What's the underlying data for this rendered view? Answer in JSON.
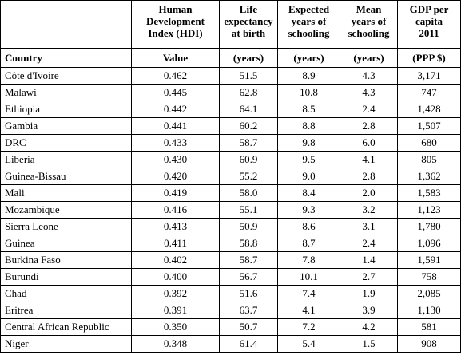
{
  "table": {
    "header_top": [
      [
        "Human",
        "Development",
        "Index (HDI)"
      ],
      [
        "Life",
        "expectancy",
        "at birth"
      ],
      [
        "Expected",
        "years of",
        "schooling"
      ],
      [
        "Mean",
        "years of",
        "schooling"
      ],
      [
        "GDP per",
        "capita",
        "2011"
      ]
    ],
    "header_sub": [
      "Country",
      "Value",
      "(years)",
      "(years)",
      "(years)",
      "(PPP $)"
    ],
    "rows": [
      [
        "Côte d'Ivoire",
        "0.462",
        "51.5",
        "8.9",
        "4.3",
        "3,171"
      ],
      [
        "Malawi",
        "0.445",
        "62.8",
        "10.8",
        "4.3",
        "747"
      ],
      [
        "Ethiopia",
        "0.442",
        "64.1",
        "8.5",
        "2.4",
        "1,428"
      ],
      [
        "Gambia",
        "0.441",
        "60.2",
        "8.8",
        "2.8",
        "1,507"
      ],
      [
        "DRC",
        "0.433",
        "58.7",
        "9.8",
        "6.0",
        "680"
      ],
      [
        "Liberia",
        "0.430",
        "60.9",
        "9.5",
        "4.1",
        "805"
      ],
      [
        "Guinea-Bissau",
        "0.420",
        "55.2",
        "9.0",
        "2.8",
        "1,362"
      ],
      [
        "Mali",
        "0.419",
        "58.0",
        "8.4",
        "2.0",
        "1,583"
      ],
      [
        "Mozambique",
        "0.416",
        "55.1",
        "9.3",
        "3.2",
        "1,123"
      ],
      [
        "Sierra Leone",
        "0.413",
        "50.9",
        "8.6",
        "3.1",
        "1,780"
      ],
      [
        "Guinea",
        "0.411",
        "58.8",
        "8.7",
        "2.4",
        "1,096"
      ],
      [
        "Burkina Faso",
        "0.402",
        "58.7",
        "7.8",
        "1.4",
        "1,591"
      ],
      [
        "Burundi",
        "0.400",
        "56.7",
        "10.1",
        "2.7",
        "758"
      ],
      [
        "Chad",
        "0.392",
        "51.6",
        "7.4",
        "1.9",
        "2,085"
      ],
      [
        "Eritrea",
        "0.391",
        "63.7",
        "4.1",
        "3.9",
        "1,130"
      ],
      [
        "Central African Republic",
        "0.350",
        "50.7",
        "7.2",
        "4.2",
        "581"
      ],
      [
        "Niger",
        "0.348",
        "61.4",
        "5.4",
        "1.5",
        "908"
      ]
    ]
  }
}
